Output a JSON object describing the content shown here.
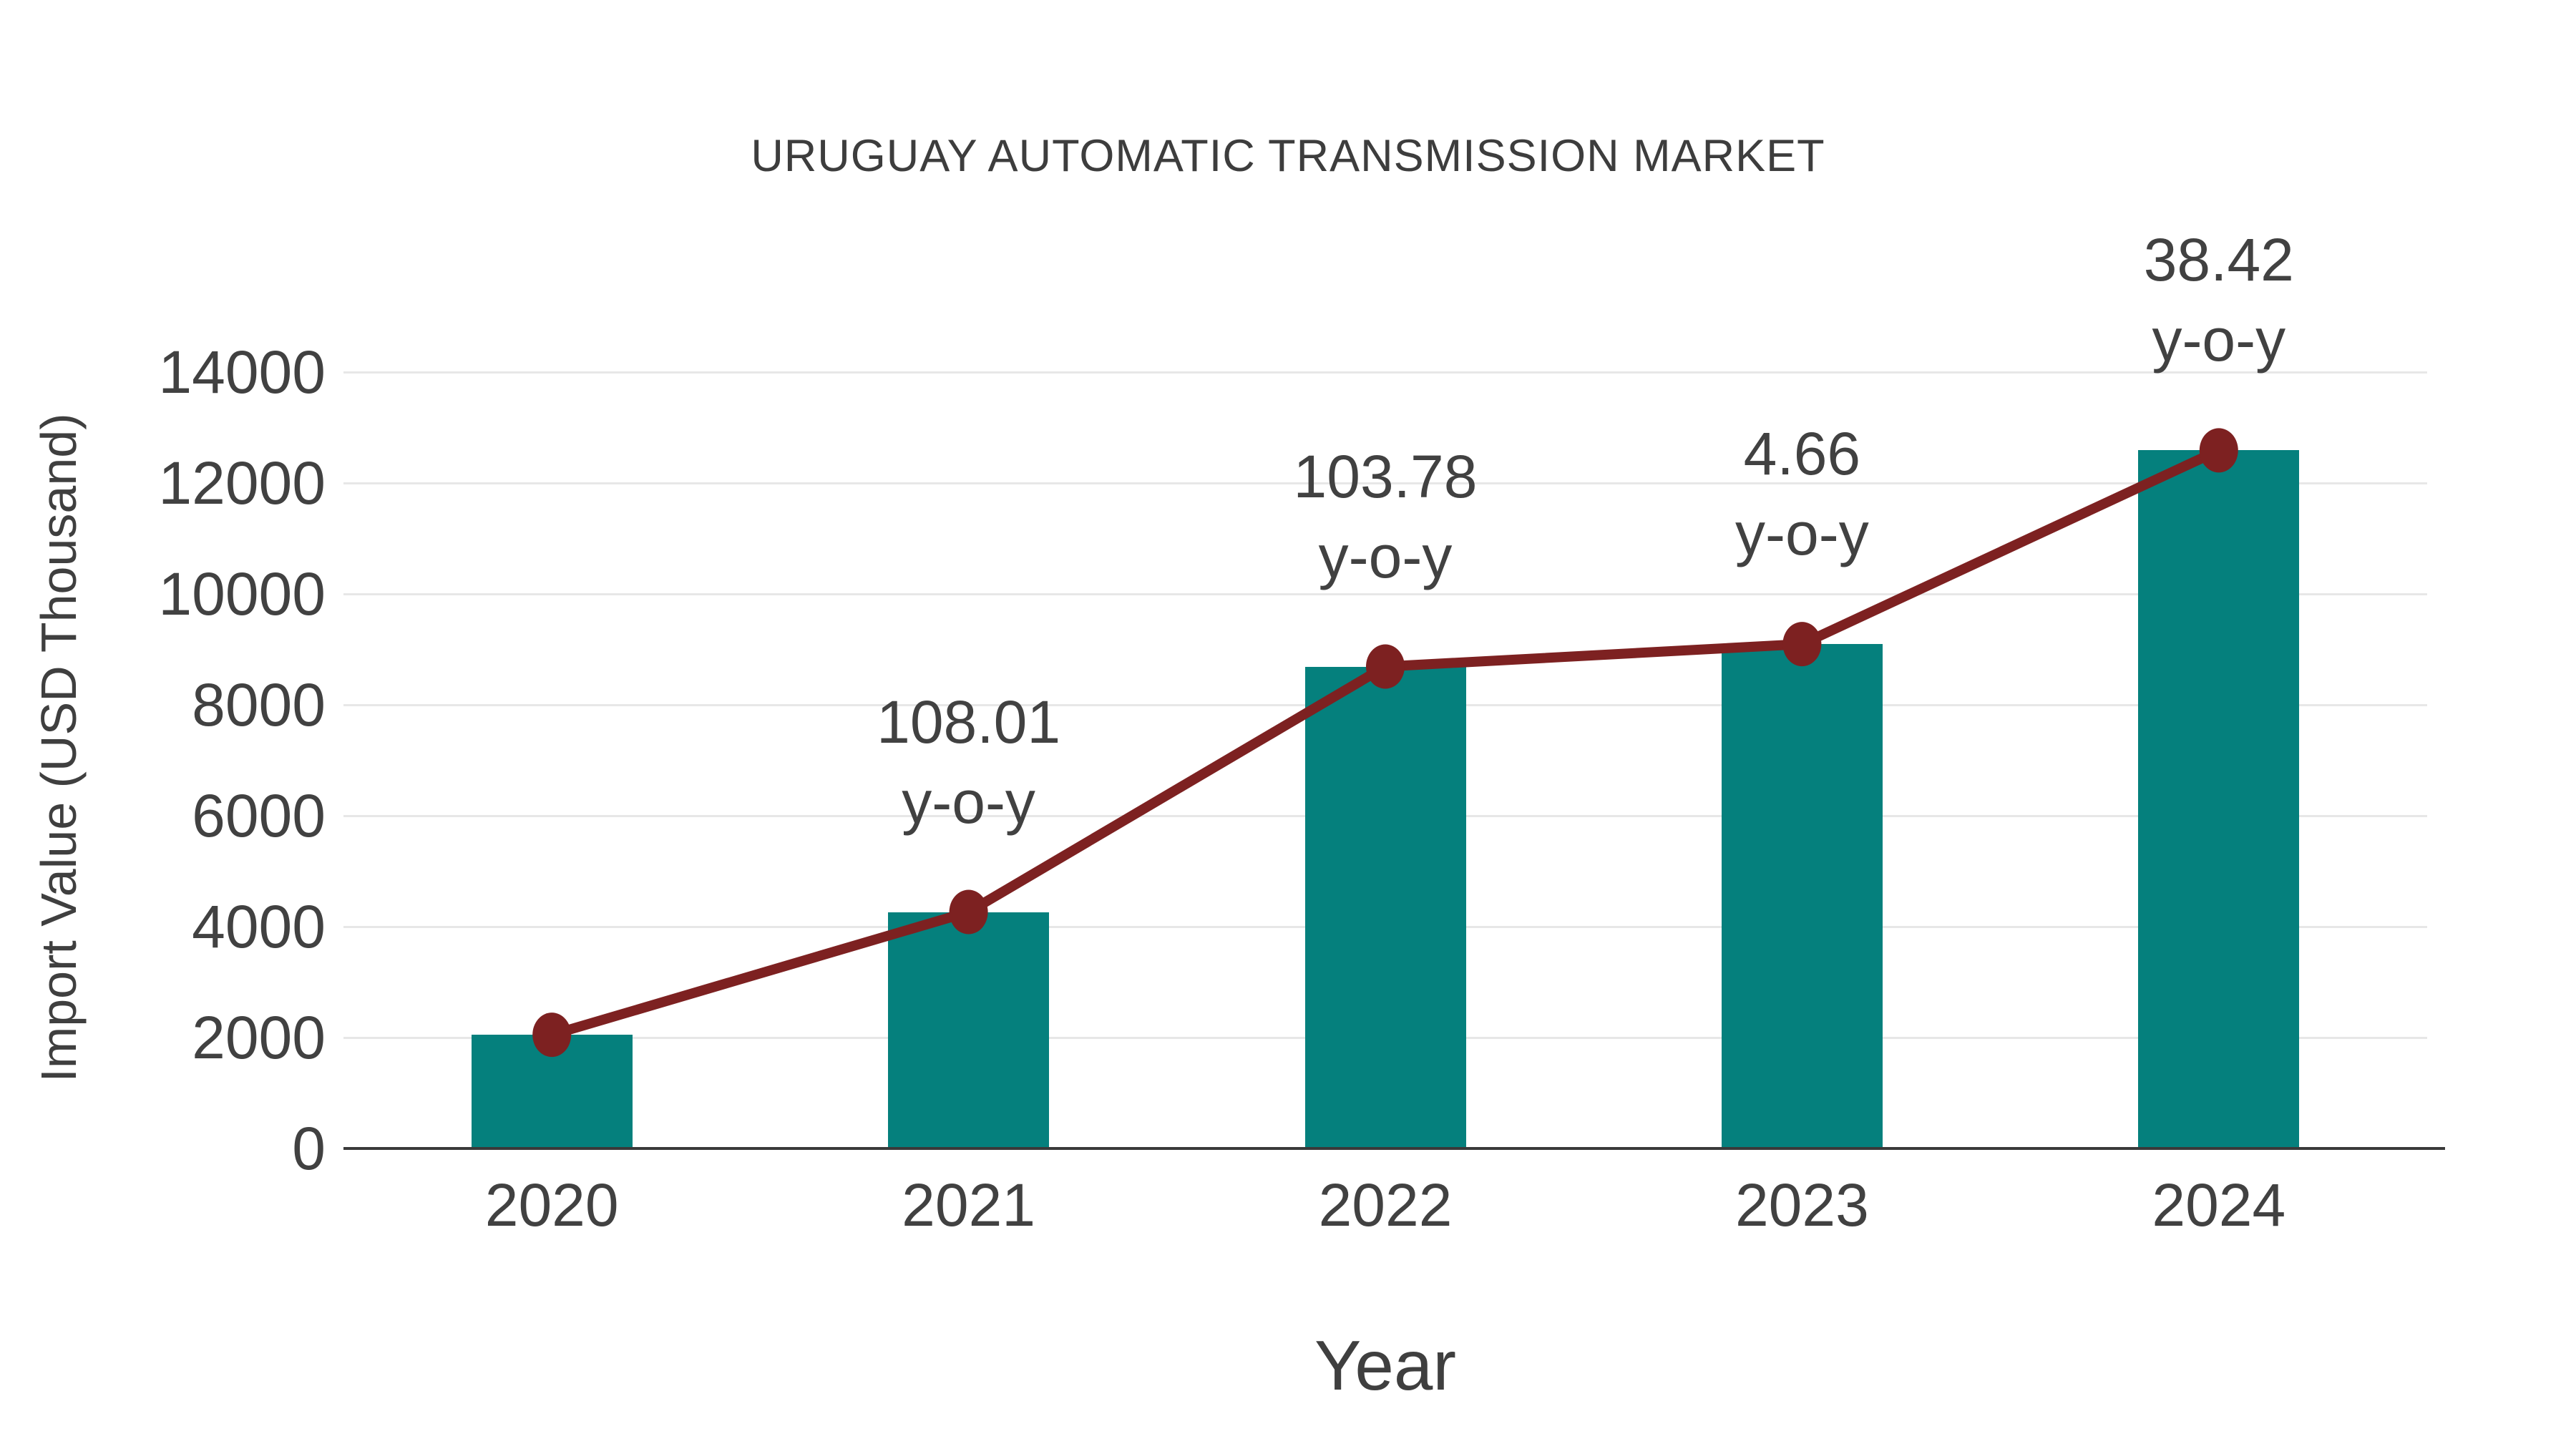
{
  "chart_data": {
    "type": "bar",
    "subtype": "bar-with-line-overlay",
    "title": "URUGUAY AUTOMATIC TRANSMISSION MARKET",
    "xlabel": "Year",
    "ylabel": "Import Value (USD Thousand)",
    "categories": [
      "2020",
      "2021",
      "2022",
      "2023",
      "2024"
    ],
    "series": [
      {
        "name": "Import Value bars",
        "type": "bar",
        "values": [
          2050,
          4264,
          8690,
          9095,
          12589
        ]
      },
      {
        "name": "Import Value trend line",
        "type": "line",
        "values": [
          2050,
          4264,
          8690,
          9095,
          12589
        ]
      }
    ],
    "annotations": [
      {
        "category": "2021",
        "value_label": "108.01",
        "unit_label": "y-o-y"
      },
      {
        "category": "2022",
        "value_label": "103.78",
        "unit_label": "y-o-y"
      },
      {
        "category": "2023",
        "value_label": "4.66",
        "unit_label": "y-o-y"
      },
      {
        "category": "2024",
        "value_label": "38.42",
        "unit_label": "y-o-y"
      }
    ],
    "y_ticks": [
      0,
      2000,
      4000,
      6000,
      8000,
      10000,
      12000,
      14000
    ],
    "ylim": [
      0,
      14000
    ],
    "grid": "horizontal",
    "legend_position": "none",
    "colors": {
      "bar": "#05807d",
      "line": "#7d2121",
      "marker": "#7d2121",
      "gridline": "#e7e7e7",
      "axis": "#3a3a3a",
      "text": "#414141"
    }
  }
}
